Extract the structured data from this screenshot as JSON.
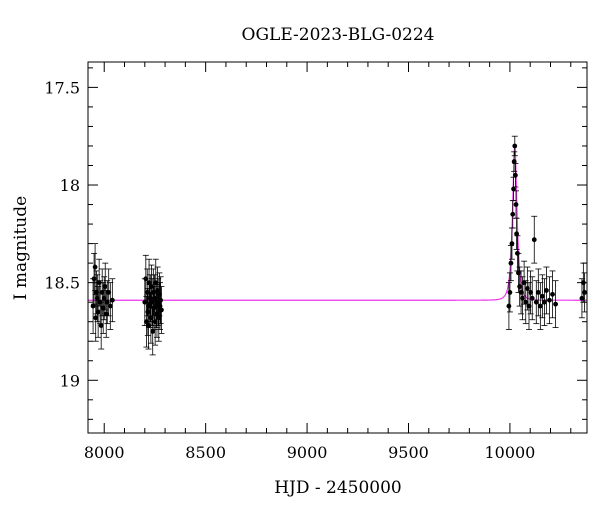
{
  "chart_data": {
    "type": "scatter",
    "title": "OGLE-2023-BLG-0224",
    "xlabel": "HJD - 2450000",
    "ylabel": "I magnitude",
    "xlim": [
      7920,
      10380
    ],
    "ylim": [
      19.27,
      17.37
    ],
    "y_inverted": true,
    "xticks": [
      8000,
      8500,
      9000,
      9500,
      10000
    ],
    "yticks": [
      17.5,
      18,
      18.5,
      19
    ],
    "xtick_labels": [
      "8000",
      "8500",
      "9000",
      "9500",
      "10000"
    ],
    "ytick_labels": [
      "17.5",
      "18",
      "18.5",
      "19"
    ],
    "grid": false,
    "legend": "none",
    "colors": {
      "model": "#ee33ee",
      "points": "#000000"
    },
    "series": [
      {
        "type": "scatter_errorbar",
        "points": [
          {
            "x": 7945,
            "y": 18.62,
            "err": 0.14
          },
          {
            "x": 7950,
            "y": 18.48,
            "err": 0.13
          },
          {
            "x": 7955,
            "y": 18.42,
            "err": 0.12
          },
          {
            "x": 7958,
            "y": 18.68,
            "err": 0.12
          },
          {
            "x": 7962,
            "y": 18.55,
            "err": 0.11
          },
          {
            "x": 7966,
            "y": 18.58,
            "err": 0.12
          },
          {
            "x": 7970,
            "y": 18.65,
            "err": 0.13
          },
          {
            "x": 7975,
            "y": 18.5,
            "err": 0.12
          },
          {
            "x": 7980,
            "y": 18.6,
            "err": 0.11
          },
          {
            "x": 7985,
            "y": 18.72,
            "err": 0.12
          },
          {
            "x": 7990,
            "y": 18.55,
            "err": 0.12
          },
          {
            "x": 7995,
            "y": 18.63,
            "err": 0.13
          },
          {
            "x": 8000,
            "y": 18.58,
            "err": 0.11
          },
          {
            "x": 8005,
            "y": 18.52,
            "err": 0.12
          },
          {
            "x": 8010,
            "y": 18.66,
            "err": 0.12
          },
          {
            "x": 8015,
            "y": 18.6,
            "err": 0.11
          },
          {
            "x": 8022,
            "y": 18.55,
            "err": 0.12
          },
          {
            "x": 8030,
            "y": 18.62,
            "err": 0.12
          },
          {
            "x": 8040,
            "y": 18.59,
            "err": 0.11
          },
          {
            "x": 8200,
            "y": 18.6,
            "err": 0.12
          },
          {
            "x": 8205,
            "y": 18.48,
            "err": 0.12
          },
          {
            "x": 8208,
            "y": 18.7,
            "err": 0.13
          },
          {
            "x": 8212,
            "y": 18.55,
            "err": 0.12
          },
          {
            "x": 8215,
            "y": 18.65,
            "err": 0.12
          },
          {
            "x": 8218,
            "y": 18.72,
            "err": 0.12
          },
          {
            "x": 8221,
            "y": 18.5,
            "err": 0.12
          },
          {
            "x": 8224,
            "y": 18.62,
            "err": 0.11
          },
          {
            "x": 8227,
            "y": 18.58,
            "err": 0.12
          },
          {
            "x": 8230,
            "y": 18.68,
            "err": 0.13
          },
          {
            "x": 8233,
            "y": 18.52,
            "err": 0.11
          },
          {
            "x": 8236,
            "y": 18.6,
            "err": 0.12
          },
          {
            "x": 8239,
            "y": 18.75,
            "err": 0.12
          },
          {
            "x": 8242,
            "y": 18.55,
            "err": 0.12
          },
          {
            "x": 8245,
            "y": 18.63,
            "err": 0.11
          },
          {
            "x": 8248,
            "y": 18.58,
            "err": 0.12
          },
          {
            "x": 8251,
            "y": 18.7,
            "err": 0.12
          },
          {
            "x": 8254,
            "y": 18.5,
            "err": 0.12
          },
          {
            "x": 8257,
            "y": 18.62,
            "err": 0.11
          },
          {
            "x": 8260,
            "y": 18.66,
            "err": 0.12
          },
          {
            "x": 8263,
            "y": 18.54,
            "err": 0.12
          },
          {
            "x": 8266,
            "y": 18.6,
            "err": 0.12
          },
          {
            "x": 8269,
            "y": 18.68,
            "err": 0.12
          },
          {
            "x": 8272,
            "y": 18.56,
            "err": 0.11
          },
          {
            "x": 8275,
            "y": 18.62,
            "err": 0.12
          },
          {
            "x": 8278,
            "y": 18.59,
            "err": 0.12
          },
          {
            "x": 8282,
            "y": 18.64,
            "err": 0.12
          },
          {
            "x": 9995,
            "y": 18.62,
            "err": 0.12
          },
          {
            "x": 10000,
            "y": 18.55,
            "err": 0.1
          },
          {
            "x": 10005,
            "y": 18.4,
            "err": 0.09
          },
          {
            "x": 10010,
            "y": 18.3,
            "err": 0.08
          },
          {
            "x": 10014,
            "y": 18.15,
            "err": 0.07
          },
          {
            "x": 10018,
            "y": 18.02,
            "err": 0.06
          },
          {
            "x": 10021,
            "y": 17.88,
            "err": 0.05
          },
          {
            "x": 10024,
            "y": 17.8,
            "err": 0.05
          },
          {
            "x": 10027,
            "y": 17.95,
            "err": 0.06
          },
          {
            "x": 10030,
            "y": 18.1,
            "err": 0.07
          },
          {
            "x": 10033,
            "y": 18.25,
            "err": 0.08
          },
          {
            "x": 10037,
            "y": 18.35,
            "err": 0.09
          },
          {
            "x": 10042,
            "y": 18.45,
            "err": 0.1
          },
          {
            "x": 10048,
            "y": 18.52,
            "err": 0.1
          },
          {
            "x": 10055,
            "y": 18.55,
            "err": 0.11
          },
          {
            "x": 10062,
            "y": 18.58,
            "err": 0.11
          },
          {
            "x": 10070,
            "y": 18.5,
            "err": 0.11
          },
          {
            "x": 10078,
            "y": 18.6,
            "err": 0.11
          },
          {
            "x": 10086,
            "y": 18.53,
            "err": 0.11
          },
          {
            "x": 10094,
            "y": 18.62,
            "err": 0.12
          },
          {
            "x": 10102,
            "y": 18.55,
            "err": 0.11
          },
          {
            "x": 10110,
            "y": 18.58,
            "err": 0.11
          },
          {
            "x": 10120,
            "y": 18.28,
            "err": 0.12
          },
          {
            "x": 10130,
            "y": 18.6,
            "err": 0.11
          },
          {
            "x": 10140,
            "y": 18.55,
            "err": 0.12
          },
          {
            "x": 10150,
            "y": 18.62,
            "err": 0.12
          },
          {
            "x": 10160,
            "y": 18.57,
            "err": 0.11
          },
          {
            "x": 10170,
            "y": 18.6,
            "err": 0.12
          },
          {
            "x": 10180,
            "y": 18.54,
            "err": 0.12
          },
          {
            "x": 10195,
            "y": 18.59,
            "err": 0.12
          },
          {
            "x": 10210,
            "y": 18.56,
            "err": 0.12
          },
          {
            "x": 10225,
            "y": 18.61,
            "err": 0.12
          },
          {
            "x": 10355,
            "y": 18.58,
            "err": 0.1
          },
          {
            "x": 10362,
            "y": 18.5,
            "err": 0.1
          },
          {
            "x": 10368,
            "y": 18.55,
            "err": 0.1
          }
        ]
      },
      {
        "type": "line",
        "model": {
          "baseline": 18.59,
          "t0": 10024,
          "u_peak_mag": 17.8,
          "tE": 18
        }
      }
    ]
  }
}
